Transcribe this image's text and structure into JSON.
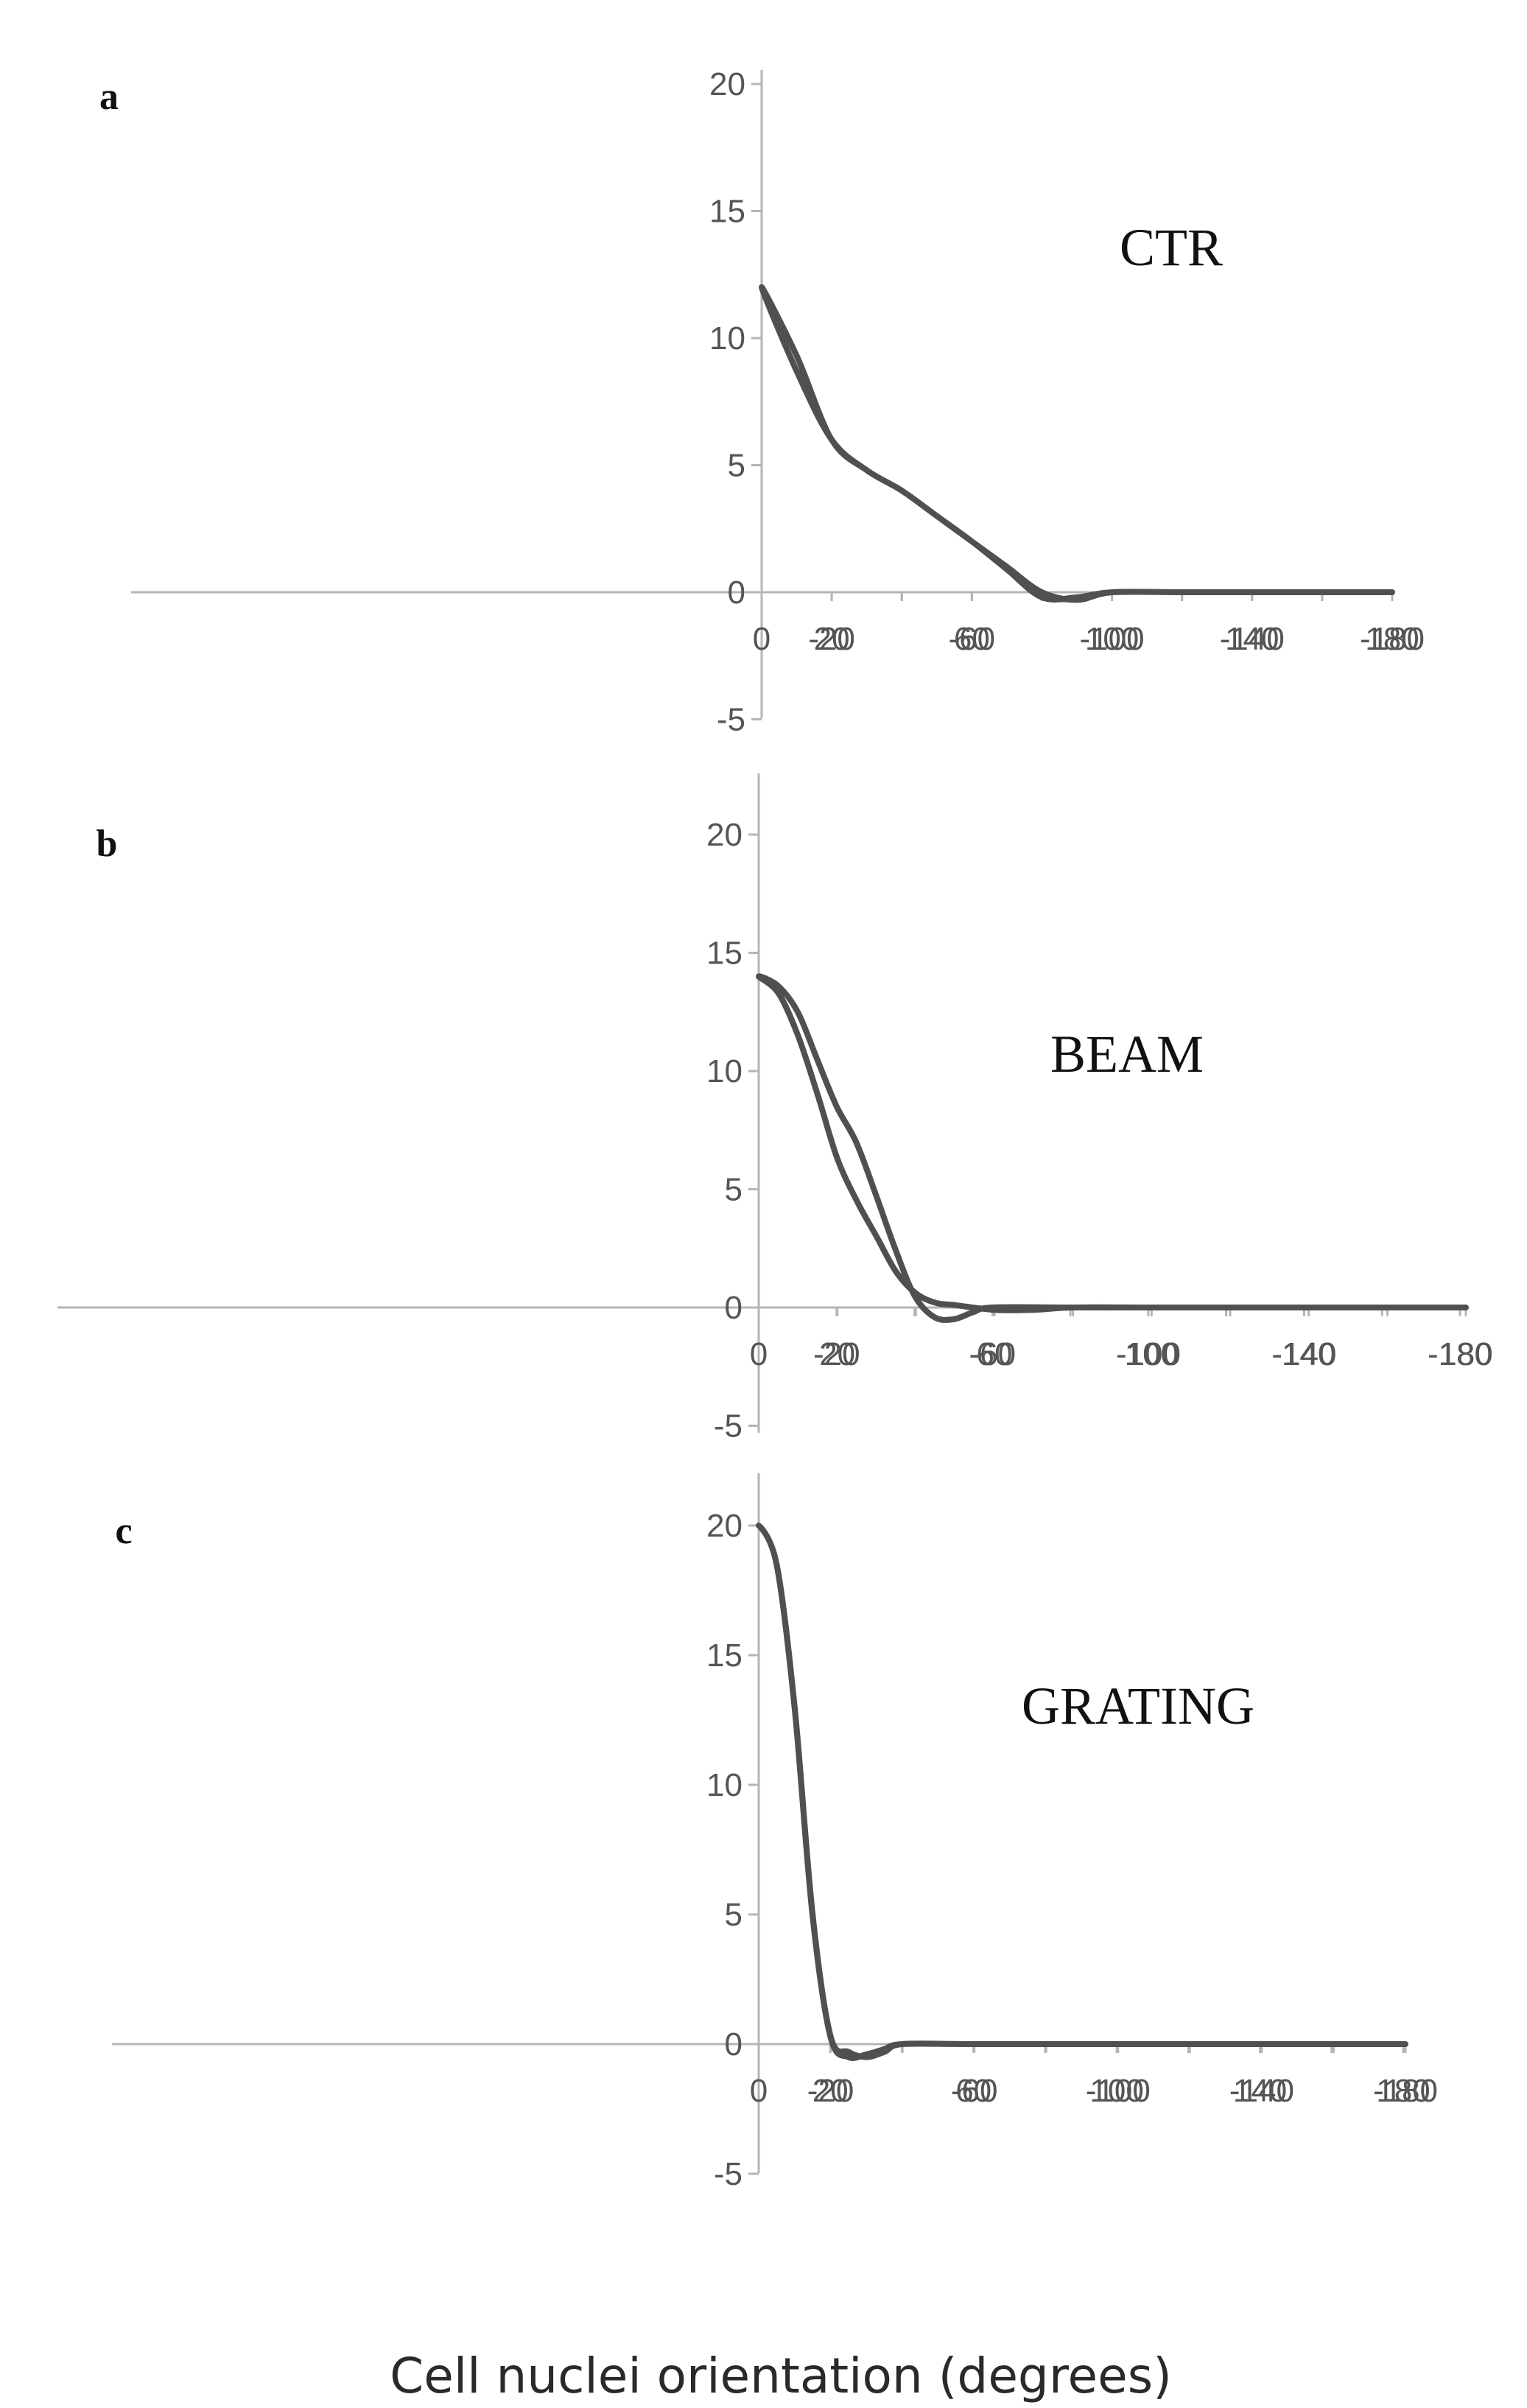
{
  "chart_data": [
    {
      "type": "line",
      "panel_label": "a",
      "series": [
        {
          "name": "CTR",
          "x": [
            -180,
            -160,
            -140,
            -120,
            -100,
            -90,
            -80,
            -70,
            -60,
            -50,
            -40,
            -30,
            -20,
            -10,
            0,
            10,
            20,
            30,
            40,
            50,
            60,
            70,
            80,
            90,
            100,
            120,
            140,
            160,
            180
          ],
          "values": [
            0,
            0,
            0,
            0,
            0,
            -0.3,
            0,
            1,
            2,
            3,
            4,
            4.8,
            6,
            8.7,
            12,
            9.3,
            6,
            4.8,
            4,
            3,
            2,
            0.9,
            -0.2,
            -0.2,
            0,
            0,
            0,
            0,
            0
          ]
        }
      ],
      "xlim": [
        -180,
        180
      ],
      "ylim": [
        -5,
        20
      ],
      "xticks": [
        -180,
        -140,
        -100,
        -60,
        -20,
        0,
        20,
        60,
        100,
        140,
        180
      ],
      "yticks": [
        -5,
        0,
        5,
        10,
        15,
        20
      ]
    },
    {
      "type": "line",
      "panel_label": "b",
      "series": [
        {
          "name": "BEAM",
          "x": [
            -180,
            -160,
            -140,
            -120,
            -100,
            -80,
            -60,
            -55,
            -50,
            -45,
            -40,
            -35,
            -30,
            -25,
            -20,
            -15,
            -10,
            -5,
            0,
            5,
            10,
            15,
            20,
            25,
            30,
            35,
            40,
            45,
            50,
            60,
            70,
            80,
            100,
            120,
            140,
            160,
            180
          ],
          "values": [
            0,
            0,
            0,
            0,
            0,
            0,
            0,
            -0.2,
            -0.5,
            -0.4,
            0.5,
            2.5,
            4.8,
            7,
            8.5,
            10.5,
            12.5,
            13.6,
            14,
            13.3,
            11.5,
            9,
            6.3,
            4.5,
            3,
            1.5,
            0.6,
            0.2,
            0.1,
            -0.1,
            -0.1,
            0,
            0,
            0,
            0,
            0,
            0
          ]
        }
      ],
      "xlim": [
        -180,
        180
      ],
      "ylim": [
        -5,
        20
      ],
      "xticks": [
        -180,
        -140,
        -100,
        -60,
        -20,
        0,
        20,
        60,
        100,
        140,
        180
      ],
      "yticks": [
        -5,
        0,
        5,
        10,
        15,
        20
      ]
    },
    {
      "type": "line",
      "panel_label": "c",
      "series": [
        {
          "name": "GRATING",
          "x": [
            -180,
            -140,
            -100,
            -60,
            -40,
            -35,
            -30,
            -25,
            -20,
            -15,
            -10,
            -5,
            0,
            5,
            10,
            15,
            20,
            25,
            30,
            35,
            40,
            60,
            100,
            140,
            180
          ],
          "values": [
            0,
            0,
            0,
            0,
            0,
            -0.3,
            -0.5,
            -0.3,
            0.3,
            5,
            13,
            18.5,
            20,
            18.5,
            13,
            5,
            0.3,
            -0.5,
            -0.4,
            -0.2,
            0,
            0,
            0,
            0,
            0
          ]
        }
      ],
      "xlim": [
        -180,
        180
      ],
      "ylim": [
        -5,
        20
      ],
      "xticks": [
        -180,
        -140,
        -100,
        -60,
        -20,
        0,
        20,
        60,
        100,
        140,
        180
      ],
      "yticks": [
        -5,
        0,
        5,
        10,
        15,
        20
      ]
    }
  ],
  "xlabel": "Cell nuclei orientation (degrees)",
  "line_color": "#505050",
  "axis_color": "#b5b5b5"
}
